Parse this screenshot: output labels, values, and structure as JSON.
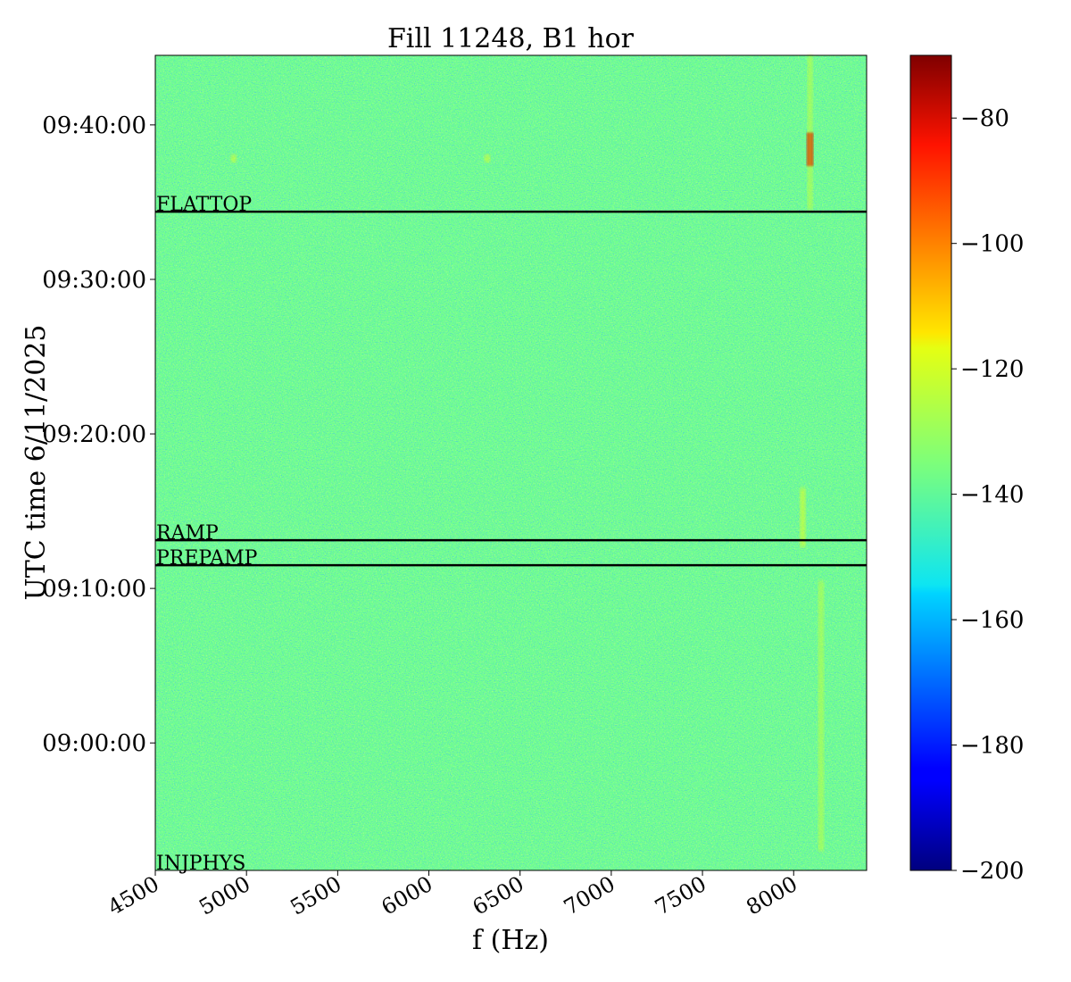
{
  "chart_data": {
    "type": "heatmap",
    "title": "Fill 11248, B1 hor",
    "xlabel": "f (Hz)",
    "ylabel": "UTC time 6/11/2025",
    "xlim": [
      4500,
      8400
    ],
    "ylim": [
      "08:51:45",
      "09:44:30"
    ],
    "x_ticks": [
      "4500",
      "5000",
      "5500",
      "6000",
      "6500",
      "7000",
      "7500",
      "8000"
    ],
    "y_ticks": [
      "09:00:00",
      "09:10:00",
      "09:20:00",
      "09:30:00",
      "09:40:00"
    ],
    "colorbar": {
      "colormap": "jet",
      "range": [
        -200,
        -70
      ],
      "ticks": [
        "-80",
        "-100",
        "-120",
        "-140",
        "-160",
        "-180",
        "-200"
      ]
    },
    "background_level": -137,
    "phase_markers": [
      {
        "label": "FLATTOP",
        "time": "09:34:23"
      },
      {
        "label": "RAMP",
        "time": "09:13:07"
      },
      {
        "label": "PREPAMP",
        "time": "09:11:30"
      },
      {
        "label": "INJPHYS",
        "time": "08:51:45"
      }
    ],
    "features": [
      {
        "f": 8090,
        "t_start": "09:37:20",
        "t_end": "09:39:30",
        "level": -80
      },
      {
        "f": 8090,
        "t_start": "09:34:30",
        "t_end": "09:44:30",
        "level": -125
      },
      {
        "f": 8050,
        "t_start": "09:12:40",
        "t_end": "09:16:30",
        "level": -120
      },
      {
        "f": 8150,
        "t_start": "08:53:00",
        "t_end": "09:10:30",
        "level": -125
      },
      {
        "f": 4930,
        "t_start": "09:37:35",
        "t_end": "09:38:05",
        "level": -120
      },
      {
        "f": 6320,
        "t_start": "09:37:35",
        "t_end": "09:38:05",
        "level": -120
      }
    ]
  }
}
